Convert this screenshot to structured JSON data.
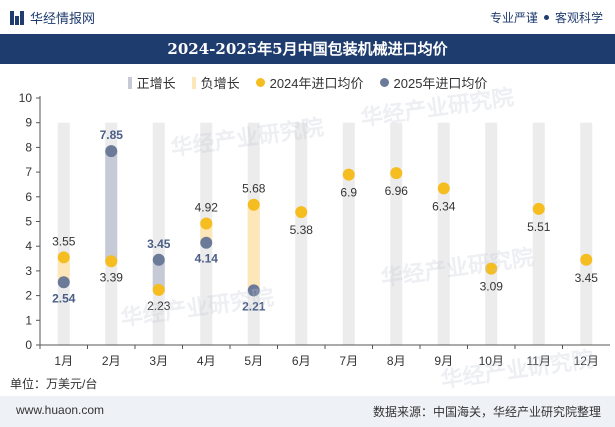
{
  "header": {
    "brand": "华经情报网",
    "slogan_left": "专业严谨",
    "slogan_right": "客观科学"
  },
  "colors": {
    "navy": "#1f3c6e",
    "pos_bar": "#c5cad6",
    "neg_bar": "#fde7b8",
    "dot_2024": "#f5bd1f",
    "dot_2025": "#6b7a99",
    "label_2025": "#4a5e86",
    "band": "#ececec"
  },
  "chart_data": {
    "type": "scatter",
    "title": "2024-2025年5月中国包装机械进口均价",
    "categories": [
      "1月",
      "2月",
      "3月",
      "4月",
      "5月",
      "6月",
      "7月",
      "8月",
      "9月",
      "10月",
      "11月",
      "12月"
    ],
    "ylim": [
      0,
      10
    ],
    "yticks": [
      0,
      1,
      2,
      3,
      4,
      5,
      6,
      7,
      8,
      9,
      10
    ],
    "grid": false,
    "legend_position": "top",
    "legend": [
      "正增长",
      "负增长",
      "2024年进口均价",
      "2025年进口均价"
    ],
    "series": [
      {
        "name": "2024年进口均价",
        "values": [
          3.55,
          3.39,
          2.23,
          4.92,
          5.68,
          5.38,
          6.9,
          6.96,
          6.34,
          3.09,
          5.51,
          3.45
        ]
      },
      {
        "name": "2025年进口均价",
        "values": [
          2.54,
          7.85,
          3.45,
          4.14,
          2.21,
          null,
          null,
          null,
          null,
          null,
          null,
          null
        ]
      }
    ],
    "unit_label": "单位：万美元/台"
  },
  "footer": {
    "site": "www.huaon.com",
    "source": "数据来源：中国海关，华经产业研究院整理"
  },
  "watermark": "华经产业研究院"
}
